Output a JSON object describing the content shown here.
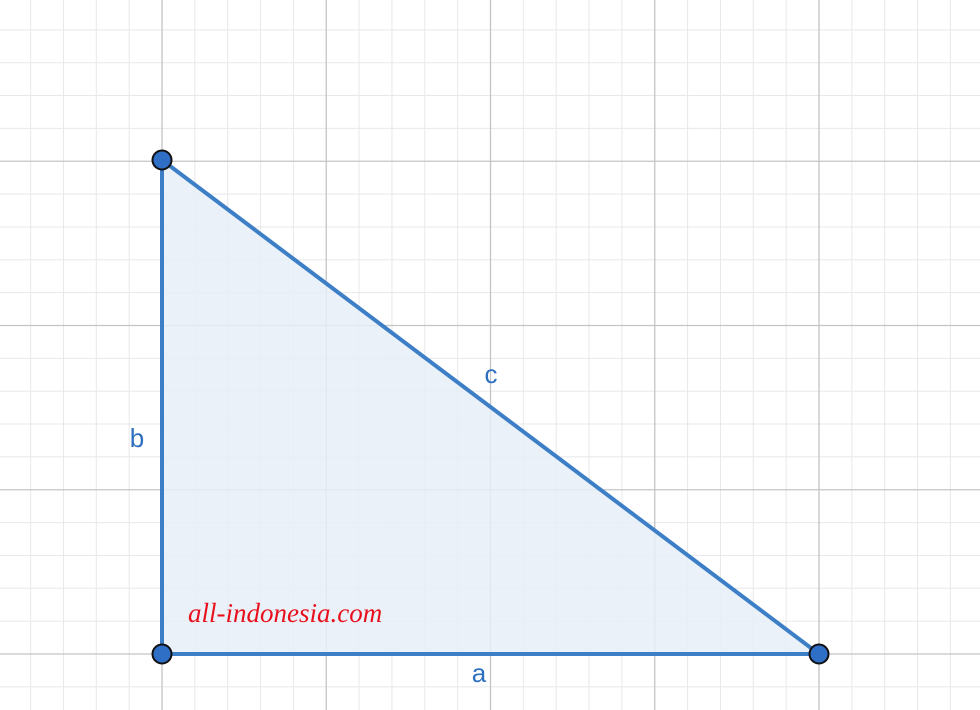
{
  "diagram": {
    "shape": "right triangle",
    "side_labels": {
      "a": "a",
      "b": "b",
      "c": "c"
    },
    "watermark": "all-indonesia.com",
    "colors": {
      "stroke": "#3d7fc6",
      "fill": "#e6eef8",
      "point_fill": "#2f6fc6",
      "point_outline": "#111111",
      "label": "#2f6fc0",
      "watermark": "#e8101c",
      "grid_major": "#c4c4c4",
      "grid_minor": "#e8e8e8"
    }
  }
}
